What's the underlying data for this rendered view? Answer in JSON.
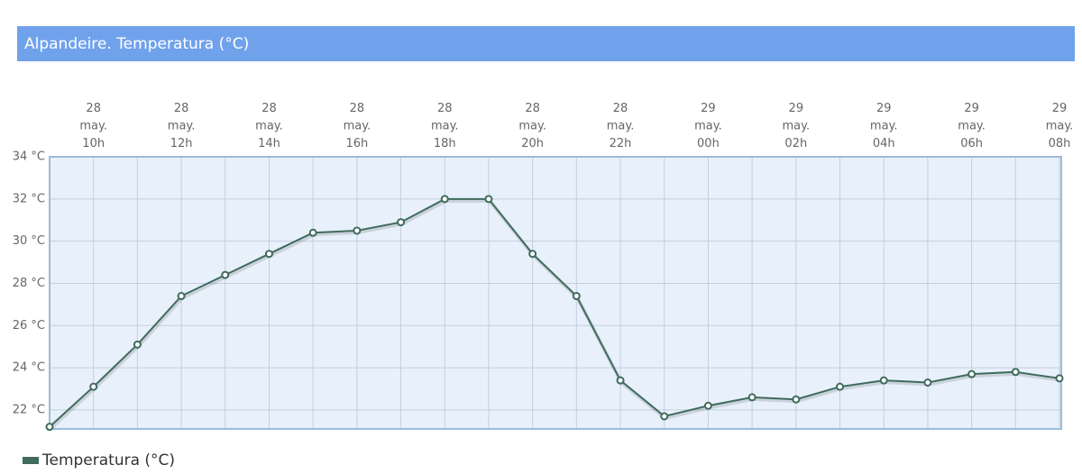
{
  "chart_data": {
    "type": "line",
    "title": "Alpandeire. Temperatura (°C)",
    "categories": [
      null,
      [
        "28",
        "may.",
        "10h"
      ],
      null,
      [
        "28",
        "may.",
        "12h"
      ],
      null,
      [
        "28",
        "may.",
        "14h"
      ],
      null,
      [
        "28",
        "may.",
        "16h"
      ],
      null,
      [
        "28",
        "may.",
        "18h"
      ],
      null,
      [
        "28",
        "may.",
        "20h"
      ],
      null,
      [
        "28",
        "may.",
        "22h"
      ],
      null,
      [
        "29",
        "may.",
        "00h"
      ],
      null,
      [
        "29",
        "may.",
        "02h"
      ],
      null,
      [
        "29",
        "may.",
        "04h"
      ],
      null,
      [
        "29",
        "may.",
        "06h"
      ],
      null,
      [
        "29",
        "may.",
        "08h"
      ]
    ],
    "series": [
      {
        "name": "Temperatura (°C)",
        "color": "#3f6b5c",
        "values": [
          21.2,
          23.1,
          25.1,
          27.4,
          28.4,
          29.4,
          30.4,
          30.5,
          30.9,
          32.0,
          32.0,
          29.4,
          27.4,
          23.4,
          21.7,
          22.2,
          22.6,
          22.5,
          23.1,
          23.4,
          23.3,
          23.7,
          23.8,
          23.5
        ]
      }
    ],
    "ylim": [
      21.1,
      34
    ],
    "yticks": [
      {
        "value": 22,
        "label": "22 °C"
      },
      {
        "value": 24,
        "label": "24 °C"
      },
      {
        "value": 26,
        "label": "26 °C"
      },
      {
        "value": 28,
        "label": "28 °C"
      },
      {
        "value": 30,
        "label": "30 °C"
      },
      {
        "value": 32,
        "label": "32 °C"
      },
      {
        "value": 34,
        "label": "34 °C"
      }
    ],
    "grid": true
  }
}
